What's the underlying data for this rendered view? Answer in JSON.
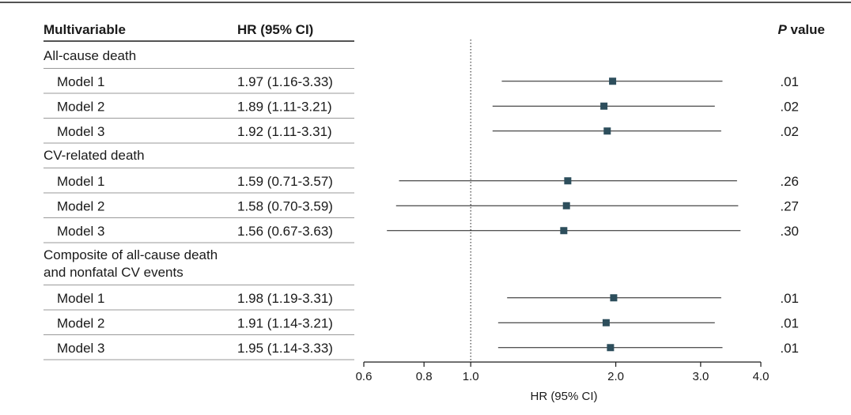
{
  "chart_data": {
    "type": "forest",
    "headers": {
      "label_col": "Multivariable",
      "hr_col": "HR (95% CI)",
      "p_col_italic": "P",
      "p_col_rest": " value"
    },
    "groups": [
      {
        "name": "All-cause death",
        "rows": [
          {
            "label": "Model 1",
            "hr_text": "1.97 (1.16-3.33)",
            "hr": 1.97,
            "lo": 1.16,
            "hi": 3.33,
            "p": ".01"
          },
          {
            "label": "Model 2",
            "hr_text": "1.89 (1.11-3.21)",
            "hr": 1.89,
            "lo": 1.11,
            "hi": 3.21,
            "p": ".02"
          },
          {
            "label": "Model 3",
            "hr_text": "1.92 (1.11-3.31)",
            "hr": 1.92,
            "lo": 1.11,
            "hi": 3.31,
            "p": ".02"
          }
        ]
      },
      {
        "name": "CV-related death",
        "rows": [
          {
            "label": "Model 1",
            "hr_text": "1.59 (0.71-3.57)",
            "hr": 1.59,
            "lo": 0.71,
            "hi": 3.57,
            "p": ".26"
          },
          {
            "label": "Model 2",
            "hr_text": "1.58 (0.70-3.59)",
            "hr": 1.58,
            "lo": 0.7,
            "hi": 3.59,
            "p": ".27"
          },
          {
            "label": "Model 3",
            "hr_text": "1.56 (0.67-3.63)",
            "hr": 1.56,
            "lo": 0.67,
            "hi": 3.63,
            "p": ".30"
          }
        ]
      },
      {
        "name": [
          "Composite of all-cause death",
          "and nonfatal CV events"
        ],
        "rows": [
          {
            "label": "Model 1",
            "hr_text": "1.98 (1.19-3.31)",
            "hr": 1.98,
            "lo": 1.19,
            "hi": 3.31,
            "p": ".01"
          },
          {
            "label": "Model 2",
            "hr_text": "1.91 (1.14-3.21)",
            "hr": 1.91,
            "lo": 1.14,
            "hi": 3.21,
            "p": ".01"
          },
          {
            "label": "Model 3",
            "hr_text": "1.95 (1.14-3.33)",
            "hr": 1.95,
            "lo": 1.14,
            "hi": 3.33,
            "p": ".01"
          }
        ]
      }
    ],
    "x_axis": {
      "label": "HR (95% CI)",
      "scale": "log",
      "ticks": [
        {
          "value": 0.6,
          "text": "0.6"
        },
        {
          "value": 0.8,
          "text": "0.8"
        },
        {
          "value": 1.0,
          "text": "1.0"
        },
        {
          "value": 2.0,
          "text": "2.0"
        },
        {
          "value": 3.0,
          "text": "3.0"
        },
        {
          "value": 4.0,
          "text": "4.0"
        }
      ],
      "xlim": [
        0.6,
        4.0
      ],
      "reference_line": 1.0
    },
    "colors": {
      "marker": "#2d4e5c",
      "line": "#1a1a1a",
      "rule": "#9a9a9a"
    }
  }
}
